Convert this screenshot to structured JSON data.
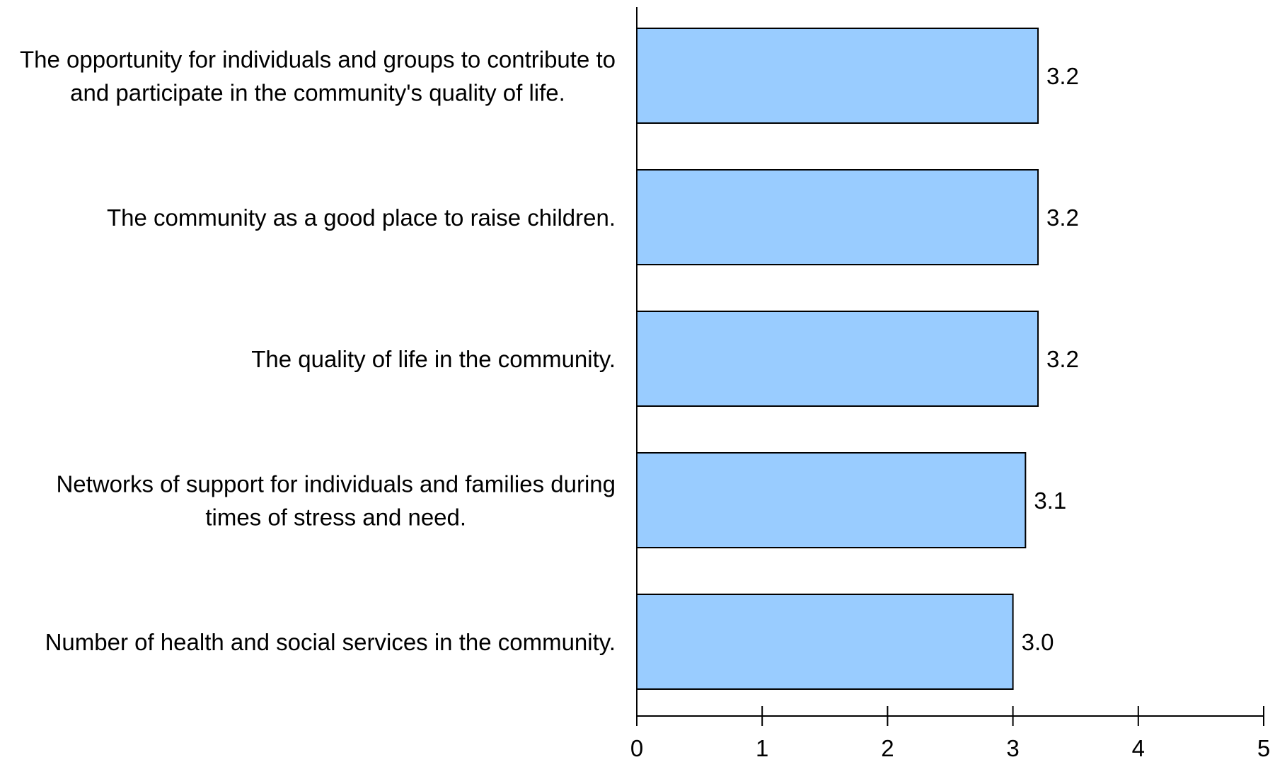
{
  "chart_data": {
    "type": "bar",
    "orientation": "horizontal",
    "categories": [
      [
        "The opportunity for individuals and groups to contribute to",
        "and participate in the community's quality of life."
      ],
      [
        "The community as a good place to raise children."
      ],
      [
        "The quality of life in the community."
      ],
      [
        "Networks of support for individuals and families during",
        "times of stress and need."
      ],
      [
        "Number of health and social services in the community."
      ]
    ],
    "values": [
      3.2,
      3.2,
      3.2,
      3.1,
      3.0
    ],
    "value_labels": [
      "3.2",
      "3.2",
      "3.2",
      "3.1",
      "3.0"
    ],
    "xlim": [
      0,
      5
    ],
    "xticks": [
      0,
      1,
      2,
      3,
      4,
      5
    ],
    "xtick_labels": [
      "0",
      "1",
      "2",
      "3",
      "4",
      "5"
    ],
    "title": "",
    "xlabel": "",
    "ylabel": "",
    "grid": false,
    "legend": "none",
    "bar_color": "#99ccff",
    "bar_edge_color": "#000000"
  }
}
